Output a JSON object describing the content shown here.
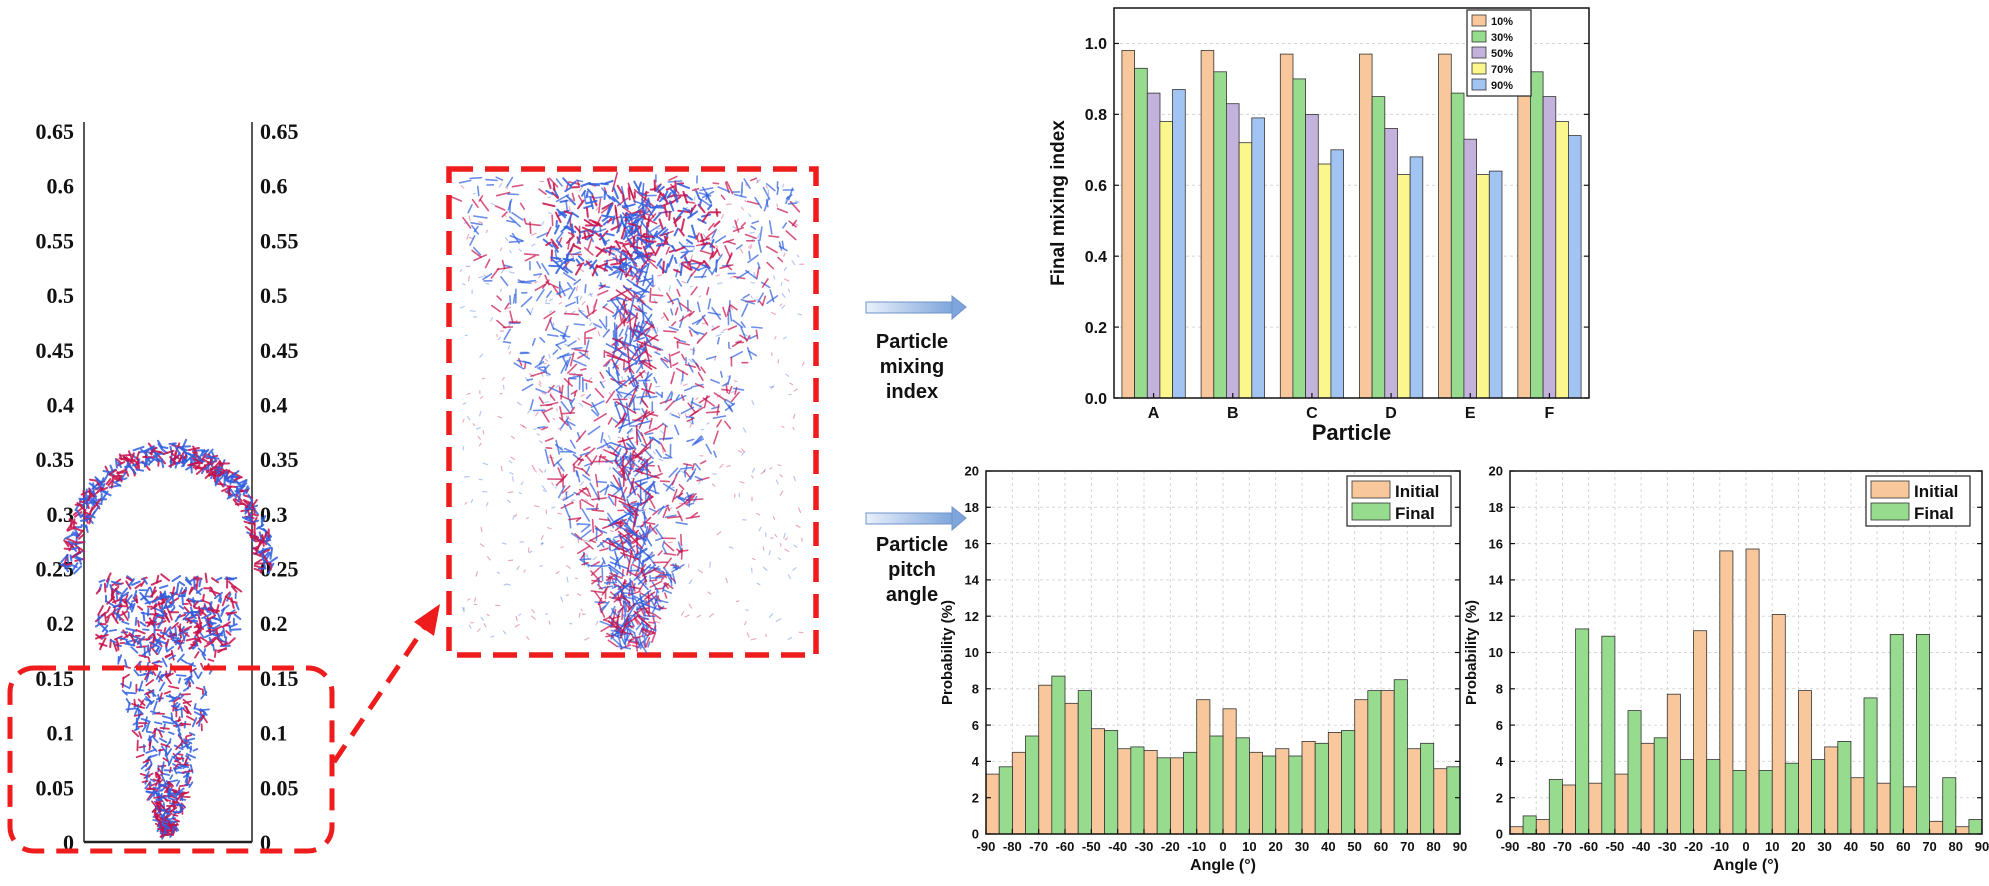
{
  "left_panel": {
    "scale_ticks": [
      "0.65",
      "0.6",
      "0.55",
      "0.5",
      "0.45",
      "0.4",
      "0.35",
      "0.3",
      "0.25",
      "0.2",
      "0.15",
      "0.1",
      "0.05",
      "0"
    ]
  },
  "flow_labels": {
    "mixing": "Particle\nmixing\nindex",
    "pitch": "Particle\npitch\nangle"
  },
  "colors": {
    "highlight": "#ee1c1c",
    "particle_blue": "#2f5fe0",
    "particle_red": "#c8104a",
    "arrow": "#8fb4e6"
  },
  "chart_data": [
    {
      "type": "bar",
      "categories": [
        "A",
        "B",
        "C",
        "D",
        "E",
        "F"
      ],
      "series": [
        {
          "name": "10%",
          "color": "#f9c79c",
          "values": [
            0.98,
            0.98,
            0.97,
            0.97,
            0.97,
            0.98
          ]
        },
        {
          "name": "30%",
          "color": "#97db8e",
          "values": [
            0.93,
            0.92,
            0.9,
            0.85,
            0.86,
            0.92
          ]
        },
        {
          "name": "50%",
          "color": "#c2b2dc",
          "values": [
            0.86,
            0.83,
            0.8,
            0.76,
            0.73,
            0.85
          ]
        },
        {
          "name": "70%",
          "color": "#fbf78d",
          "values": [
            0.78,
            0.72,
            0.66,
            0.63,
            0.63,
            0.78
          ]
        },
        {
          "name": "90%",
          "color": "#a2c4f3",
          "values": [
            0.87,
            0.79,
            0.7,
            0.68,
            0.64,
            0.74
          ]
        }
      ],
      "xlabel": "Particle",
      "ylabel": "Final mixing index",
      "ylim": [
        0,
        1.1
      ],
      "yticks": [
        "0.0",
        "0.2",
        "0.4",
        "0.6",
        "0.8",
        "1.0"
      ],
      "legend_position": "top-right",
      "grid": true
    },
    {
      "type": "bar",
      "x": [
        -85,
        -75,
        -65,
        -55,
        -45,
        -35,
        -25,
        -15,
        -5,
        5,
        15,
        25,
        35,
        45,
        55,
        65,
        75,
        85
      ],
      "series": [
        {
          "name": "Initial",
          "color": "#f9c79c",
          "values": [
            3.3,
            4.5,
            8.2,
            7.2,
            5.8,
            4.7,
            4.6,
            4.2,
            7.4,
            6.9,
            4.5,
            4.7,
            5.1,
            5.6,
            7.4,
            7.9,
            4.7,
            3.6
          ]
        },
        {
          "name": "Final",
          "color": "#97db8e",
          "values": [
            3.7,
            5.4,
            8.7,
            7.9,
            5.7,
            4.8,
            4.2,
            4.5,
            5.4,
            5.3,
            4.3,
            4.3,
            5.0,
            5.7,
            7.9,
            8.5,
            5.0,
            3.7
          ]
        }
      ],
      "xlabel": "Angle (°)",
      "ylabel": "Probability (%)",
      "xlim": [
        -90,
        90
      ],
      "ylim": [
        0,
        20
      ],
      "xticks": [
        "-90",
        "-80",
        "-70",
        "-60",
        "-50",
        "-40",
        "-30",
        "-20",
        "-10",
        "0",
        "10",
        "20",
        "30",
        "40",
        "50",
        "60",
        "70",
        "80",
        "90"
      ],
      "yticks": [
        "0",
        "2",
        "4",
        "6",
        "8",
        "10",
        "12",
        "14",
        "16",
        "18",
        "20"
      ],
      "legend_position": "top-right",
      "grid": true
    },
    {
      "type": "bar",
      "x": [
        -85,
        -75,
        -65,
        -55,
        -45,
        -35,
        -25,
        -15,
        -5,
        5,
        15,
        25,
        35,
        45,
        55,
        65,
        75,
        85
      ],
      "series": [
        {
          "name": "Initial",
          "color": "#f9c79c",
          "values": [
            0.4,
            0.8,
            2.7,
            2.8,
            3.3,
            5.0,
            7.7,
            11.2,
            15.6,
            15.7,
            12.1,
            7.9,
            4.8,
            3.1,
            2.8,
            2.6,
            0.7,
            0.4
          ]
        },
        {
          "name": "Final",
          "color": "#97db8e",
          "values": [
            1.0,
            3.0,
            11.3,
            10.9,
            6.8,
            5.3,
            4.1,
            4.1,
            3.5,
            3.5,
            3.9,
            4.1,
            5.1,
            7.5,
            11.0,
            11.0,
            3.1,
            0.8
          ]
        }
      ],
      "xlabel": "Angle (°)",
      "ylabel": "Probability (%)",
      "xlim": [
        -90,
        90
      ],
      "ylim": [
        0,
        20
      ],
      "xticks": [
        "-90",
        "-80",
        "-70",
        "-60",
        "-50",
        "-40",
        "-30",
        "-20",
        "-10",
        "0",
        "10",
        "20",
        "30",
        "40",
        "50",
        "60",
        "70",
        "80",
        "90"
      ],
      "yticks": [
        "0",
        "2",
        "4",
        "6",
        "8",
        "10",
        "12",
        "14",
        "16",
        "18",
        "20"
      ],
      "legend_position": "top-right",
      "grid": true
    }
  ]
}
